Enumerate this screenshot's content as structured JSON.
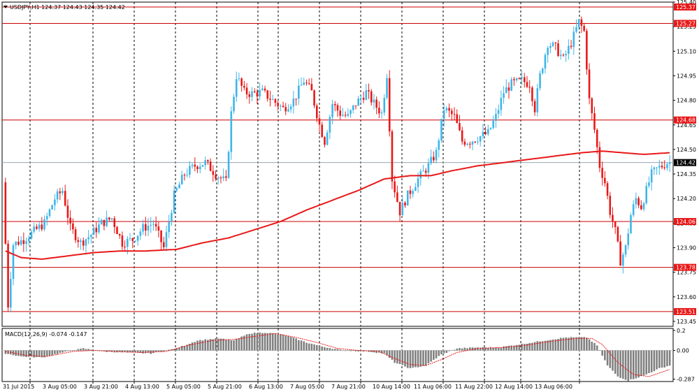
{
  "header": {
    "title": "USDJPY,H1  124.37 124.43 124.35 124.42"
  },
  "subwindow": {
    "label": "MACD(12,26,9) -0.074 -0.147"
  },
  "colors": {
    "bull": "#3fb5e8",
    "bear": "#e81818",
    "ma": "#e81818",
    "level": "#cc0000",
    "bid": "#9aa6b2",
    "macd_hist": "#808080",
    "macd_signal": "#e81818",
    "grid": "#000000",
    "tag_bg_red": "#e81818",
    "tag_bg_current": "#000000"
  },
  "chart_data": [
    {
      "type": "candlestick",
      "symbol": "USDJPY",
      "timeframe": "H1",
      "ylim": [
        123.42,
        125.4
      ],
      "y_ticks": [
        "125.40",
        "125.25",
        "125.10",
        "124.95",
        "124.80",
        "124.65",
        "124.50",
        "124.35",
        "124.20",
        "124.05",
        "123.90",
        "123.75",
        "123.60",
        "123.45"
      ],
      "x_labels": [
        "31 Jul 2015",
        "3 Aug 05:00",
        "3 Aug 21:00",
        "4 Aug 13:00",
        "5 Aug 05:00",
        "5 Aug 21:00",
        "6 Aug 13:00",
        "7 Aug 05:00",
        "7 Aug 21:00",
        "10 Aug 14:00",
        "11 Aug 06:00",
        "11 Aug 22:00",
        "12 Aug 14:00",
        "13 Aug 06:00"
      ],
      "levels": [
        125.37,
        125.27,
        124.68,
        124.06,
        123.78,
        123.51
      ],
      "level_labels": [
        "125.37",
        "125.27",
        "124.68",
        "124.06",
        "123.78",
        "123.51"
      ],
      "current_price": 124.42,
      "current_price_label": "124.42",
      "grid": "vertical dotted",
      "anchors": [
        [
          0,
          124.3
        ],
        [
          2,
          123.55
        ],
        [
          4,
          123.92
        ],
        [
          8,
          123.95
        ],
        [
          12,
          124.0
        ],
        [
          16,
          124.05
        ],
        [
          20,
          124.2
        ],
        [
          23,
          124.25
        ],
        [
          26,
          124.02
        ],
        [
          30,
          123.93
        ],
        [
          34,
          123.98
        ],
        [
          38,
          124.05
        ],
        [
          42,
          124.08
        ],
        [
          46,
          123.93
        ],
        [
          50,
          123.95
        ],
        [
          54,
          124.02
        ],
        [
          58,
          124.05
        ],
        [
          62,
          123.9
        ],
        [
          66,
          124.22
        ],
        [
          70,
          124.35
        ],
        [
          74,
          124.4
        ],
        [
          78,
          124.42
        ],
        [
          82,
          124.35
        ],
        [
          86,
          124.3
        ],
        [
          88,
          124.72
        ],
        [
          90,
          124.95
        ],
        [
          93,
          124.85
        ],
        [
          96,
          124.84
        ],
        [
          100,
          124.85
        ],
        [
          104,
          124.8
        ],
        [
          108,
          124.75
        ],
        [
          112,
          124.8
        ],
        [
          116,
          124.92
        ],
        [
          119,
          124.85
        ],
        [
          122,
          124.65
        ],
        [
          124,
          124.55
        ],
        [
          127,
          124.78
        ],
        [
          130,
          124.72
        ],
        [
          133,
          124.7
        ],
        [
          136,
          124.78
        ],
        [
          140,
          124.85
        ],
        [
          143,
          124.78
        ],
        [
          146,
          124.72
        ],
        [
          148,
          124.96
        ],
        [
          150,
          124.32
        ],
        [
          153,
          124.12
        ],
        [
          156,
          124.22
        ],
        [
          160,
          124.32
        ],
        [
          164,
          124.4
        ],
        [
          167,
          124.48
        ],
        [
          170,
          124.75
        ],
        [
          174,
          124.7
        ],
        [
          177,
          124.55
        ],
        [
          180,
          124.55
        ],
        [
          184,
          124.58
        ],
        [
          187,
          124.6
        ],
        [
          190,
          124.7
        ],
        [
          193,
          124.85
        ],
        [
          196,
          124.9
        ],
        [
          200,
          124.92
        ],
        [
          203,
          124.9
        ],
        [
          205,
          124.75
        ],
        [
          207,
          124.95
        ],
        [
          210,
          125.15
        ],
        [
          213,
          125.12
        ],
        [
          216,
          125.05
        ],
        [
          219,
          125.15
        ],
        [
          222,
          125.28
        ],
        [
          224,
          125.22
        ],
        [
          226,
          124.8
        ],
        [
          228,
          124.62
        ],
        [
          230,
          124.4
        ],
        [
          232,
          124.3
        ],
        [
          234,
          124.12
        ],
        [
          236,
          124.0
        ],
        [
          238,
          123.82
        ],
        [
          240,
          123.9
        ],
        [
          242,
          124.1
        ],
        [
          244,
          124.2
        ],
        [
          246,
          124.15
        ],
        [
          248,
          124.25
        ],
        [
          250,
          124.35
        ],
        [
          252,
          124.38
        ],
        [
          254,
          124.4
        ],
        [
          256,
          124.42
        ]
      ],
      "ma_anchors": [
        [
          0,
          123.88
        ],
        [
          6,
          123.84
        ],
        [
          14,
          123.83
        ],
        [
          24,
          123.85
        ],
        [
          34,
          123.87
        ],
        [
          44,
          123.88
        ],
        [
          54,
          123.88
        ],
        [
          66,
          123.89
        ],
        [
          76,
          123.93
        ],
        [
          86,
          123.96
        ],
        [
          96,
          124.01
        ],
        [
          106,
          124.06
        ],
        [
          116,
          124.13
        ],
        [
          126,
          124.19
        ],
        [
          136,
          124.25
        ],
        [
          146,
          124.32
        ],
        [
          156,
          124.34
        ],
        [
          164,
          124.34
        ],
        [
          172,
          124.37
        ],
        [
          182,
          124.4
        ],
        [
          192,
          124.42
        ],
        [
          202,
          124.44
        ],
        [
          212,
          124.46
        ],
        [
          222,
          124.48
        ],
        [
          230,
          124.49
        ],
        [
          238,
          124.48
        ],
        [
          246,
          124.47
        ],
        [
          256,
          124.48
        ]
      ]
    },
    {
      "type": "macd",
      "name": "MACD(12,26,9)",
      "ylim": [
        -0.31,
        0.22
      ],
      "y_ticks": [
        "0.2",
        "0.00",
        "-0.287"
      ],
      "hist_anchors": [
        [
          0,
          -0.03
        ],
        [
          6,
          -0.06
        ],
        [
          14,
          -0.07
        ],
        [
          22,
          -0.02
        ],
        [
          30,
          0.02
        ],
        [
          38,
          -0.01
        ],
        [
          46,
          -0.02
        ],
        [
          56,
          -0.03
        ],
        [
          66,
          0.02
        ],
        [
          74,
          0.1
        ],
        [
          82,
          0.12
        ],
        [
          88,
          0.1
        ],
        [
          94,
          0.17
        ],
        [
          100,
          0.18
        ],
        [
          108,
          0.15
        ],
        [
          116,
          0.08
        ],
        [
          122,
          0.04
        ],
        [
          130,
          0.0
        ],
        [
          140,
          -0.01
        ],
        [
          146,
          -0.03
        ],
        [
          150,
          -0.12
        ],
        [
          156,
          -0.18
        ],
        [
          162,
          -0.15
        ],
        [
          168,
          -0.04
        ],
        [
          174,
          0.02
        ],
        [
          182,
          0.03
        ],
        [
          190,
          0.03
        ],
        [
          198,
          0.06
        ],
        [
          208,
          0.1
        ],
        [
          216,
          0.13
        ],
        [
          224,
          0.13
        ],
        [
          228,
          0.05
        ],
        [
          232,
          -0.15
        ],
        [
          236,
          -0.26
        ],
        [
          240,
          -0.3
        ],
        [
          246,
          -0.25
        ],
        [
          252,
          -0.18
        ],
        [
          256,
          -0.15
        ]
      ],
      "signal_anchors": [
        [
          0,
          -0.01
        ],
        [
          8,
          -0.05
        ],
        [
          16,
          -0.06
        ],
        [
          26,
          -0.01
        ],
        [
          34,
          0.0
        ],
        [
          42,
          -0.01
        ],
        [
          52,
          -0.02
        ],
        [
          62,
          -0.01
        ],
        [
          70,
          0.05
        ],
        [
          80,
          0.1
        ],
        [
          88,
          0.11
        ],
        [
          96,
          0.14
        ],
        [
          104,
          0.17
        ],
        [
          112,
          0.13
        ],
        [
          120,
          0.08
        ],
        [
          128,
          0.02
        ],
        [
          136,
          0.0
        ],
        [
          144,
          -0.01
        ],
        [
          150,
          -0.08
        ],
        [
          156,
          -0.14
        ],
        [
          162,
          -0.15
        ],
        [
          168,
          -0.09
        ],
        [
          174,
          -0.02
        ],
        [
          182,
          0.02
        ],
        [
          192,
          0.03
        ],
        [
          200,
          0.05
        ],
        [
          210,
          0.09
        ],
        [
          220,
          0.12
        ],
        [
          226,
          0.12
        ],
        [
          230,
          0.06
        ],
        [
          236,
          -0.12
        ],
        [
          242,
          -0.24
        ],
        [
          248,
          -0.26
        ],
        [
          256,
          -0.19
        ]
      ]
    }
  ]
}
